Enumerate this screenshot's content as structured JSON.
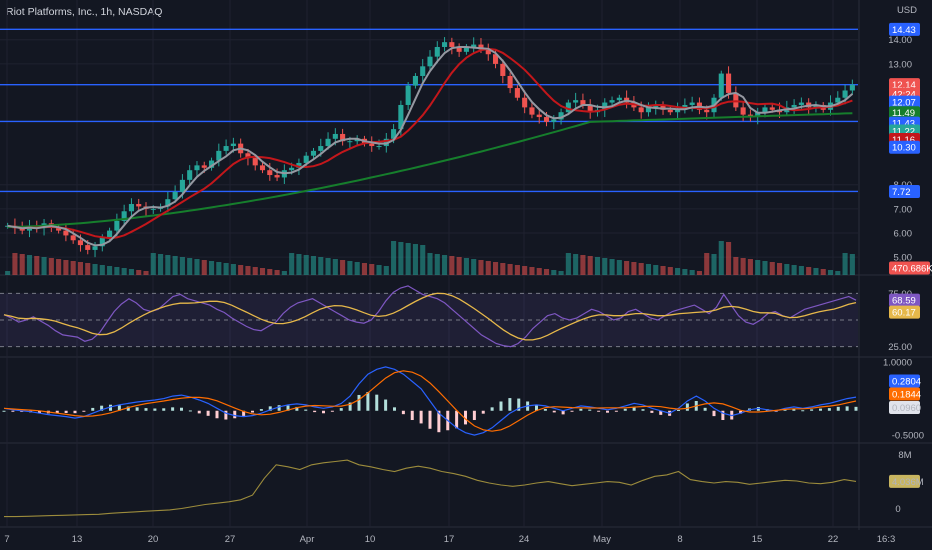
{
  "header": {
    "title": "Riot Platforms, Inc., 1h, NASDAQ",
    "currency": "USD"
  },
  "colors": {
    "background": "#131722",
    "grid": "#1f2230",
    "level_line": "#2962ff",
    "candle_up": "#26a69a",
    "candle_down": "#ef5350",
    "ma_fast": "#9598a1",
    "ma_mid": "#c3171b",
    "ma_slow": "#167e2c",
    "rsi": "#7e57c2",
    "rsi_ma": "#e6b84a",
    "macd": "#2962ff",
    "macd_signal": "#ff6d00",
    "obv": "#9c8c3c"
  },
  "chart_data": {
    "type": "candlestick",
    "symbol": "Riot Platforms, Inc., 1h, NASDAQ",
    "x_ticks": [
      "7",
      "13",
      "20",
      "27",
      "Apr",
      "10",
      "17",
      "24",
      "May",
      "8",
      "15",
      "22",
      "16:3"
    ],
    "price_axis": {
      "ticks": [
        "14.00",
        "13.00",
        "8.00",
        "7.00",
        "6.00",
        "5.00"
      ],
      "range": [
        4.8,
        14.9
      ]
    },
    "price_tags": [
      {
        "label": "14.43",
        "value": 14.43,
        "color": "#2962ff"
      },
      {
        "label": "12.14",
        "value": 12.14,
        "color": "#ef5350"
      },
      {
        "label": "42:24",
        "value": 11.75,
        "color": "#ef5350"
      },
      {
        "label": "12.07",
        "value": 11.42,
        "color": "#2962ff"
      },
      {
        "label": "11.49",
        "value": 10.98,
        "color": "#167e2c"
      },
      {
        "label": "11.43",
        "value": 10.55,
        "color": "#2962ff"
      },
      {
        "label": "11.22",
        "value": 10.22,
        "color": "#26a69a"
      },
      {
        "label": "11.16",
        "value": 9.87,
        "color": "#c3171b"
      },
      {
        "label": "10.30",
        "value": 9.55,
        "color": "#2962ff"
      },
      {
        "label": "7.72",
        "value": 7.72,
        "color": "#2962ff"
      },
      {
        "label": "470.686K",
        "value": 4.95,
        "color": "#ef5350"
      }
    ],
    "horizontal_levels": [
      14.43,
      12.14,
      10.62,
      7.72
    ],
    "close_series": [
      6.3,
      6.2,
      6.1,
      6.3,
      6.2,
      6.4,
      6.25,
      6.1,
      5.9,
      5.7,
      5.5,
      5.3,
      5.45,
      5.8,
      6.1,
      6.5,
      6.9,
      7.2,
      7.1,
      7.0,
      7.0,
      7.1,
      7.4,
      7.7,
      8.2,
      8.6,
      8.8,
      8.7,
      9.0,
      9.4,
      9.6,
      9.7,
      9.3,
      9.1,
      8.8,
      8.6,
      8.4,
      8.3,
      8.6,
      8.7,
      8.9,
      9.2,
      9.4,
      9.6,
      9.9,
      10.1,
      9.8,
      9.8,
      9.9,
      9.7,
      9.6,
      9.6,
      9.9,
      10.3,
      11.3,
      12.1,
      12.5,
      12.9,
      13.3,
      13.7,
      13.9,
      13.7,
      13.5,
      13.7,
      13.8,
      13.6,
      13.4,
      13.0,
      12.5,
      12.0,
      11.6,
      11.2,
      10.9,
      10.8,
      10.6,
      10.7,
      11.0,
      11.4,
      11.5,
      11.3,
      11.0,
      11.1,
      11.4,
      11.5,
      11.6,
      11.4,
      11.2,
      11.0,
      11.2,
      11.3,
      11.1,
      11.0,
      11.1,
      11.3,
      11.4,
      11.1,
      11.0,
      11.6,
      12.6,
      11.8,
      11.2,
      10.9,
      10.8,
      11.0,
      11.2,
      11.1,
      11.0,
      11.2,
      11.3,
      11.4,
      11.2,
      11.3,
      11.1,
      11.4,
      11.6,
      11.9,
      12.14
    ],
    "series": [
      {
        "name": "",
        "type": "sma_fast",
        "color": "#9598a1"
      },
      {
        "name": "",
        "type": "sma_mid",
        "color": "#c3171b"
      },
      {
        "name": "",
        "type": "sma_slow",
        "color": "#167e2c"
      }
    ],
    "volume_label": "470.686K",
    "rsi": {
      "ticks": [
        "75.00",
        "25.00"
      ],
      "tags": [
        {
          "label": "68.59",
          "color": "#7e57c2"
        },
        {
          "label": "60.17",
          "color": "#e6b84a"
        }
      ],
      "values": [
        55,
        52,
        48,
        50,
        53,
        49,
        45,
        40,
        36,
        35,
        34,
        30,
        32,
        38,
        48,
        58,
        65,
        70,
        66,
        60,
        58,
        60,
        66,
        72,
        74,
        70,
        68,
        66,
        64,
        60,
        57,
        52,
        48,
        44,
        41,
        40,
        44,
        48,
        56,
        62,
        66,
        68,
        70,
        66,
        62,
        58,
        54,
        50,
        48,
        47,
        50,
        58,
        68,
        76,
        80,
        82,
        78,
        74,
        72,
        70,
        66,
        60,
        54,
        48,
        42,
        36,
        32,
        28,
        26,
        25,
        28,
        34,
        42,
        48,
        54,
        56,
        52,
        50,
        52,
        56,
        60,
        58,
        54,
        50,
        52,
        58,
        60,
        56,
        52,
        50,
        54,
        58,
        60,
        62,
        64,
        60,
        56,
        62,
        74,
        64,
        54,
        48,
        46,
        50,
        56,
        58,
        54,
        52,
        56,
        60,
        62,
        64,
        66,
        68,
        70,
        72,
        68.59
      ]
    },
    "macd": {
      "ticks": [
        "1.0000",
        "-0.5000"
      ],
      "tags": [
        {
          "label": "0.2804",
          "color": "#2962ff"
        },
        {
          "label": "0.1844",
          "color": "#ff6d00"
        },
        {
          "label": "0.0960",
          "color": "#ffffff"
        }
      ],
      "values": [
        0.05,
        0.02,
        0.0,
        -0.02,
        -0.05,
        -0.08,
        -0.1,
        -0.12,
        -0.15,
        -0.12,
        -0.05,
        0.02,
        0.08,
        0.12,
        0.15,
        0.18,
        0.2,
        0.22,
        0.25,
        0.3,
        0.32,
        0.28,
        0.22,
        0.15,
        0.05,
        -0.05,
        -0.1,
        -0.12,
        -0.1,
        -0.05,
        0.02,
        0.08,
        0.12,
        0.14,
        0.12,
        0.08,
        0.05,
        0.08,
        0.15,
        0.3,
        0.55,
        0.75,
        0.85,
        0.9,
        0.85,
        0.75,
        0.6,
        0.45,
        0.2,
        -0.05,
        -0.2,
        -0.35,
        -0.45,
        -0.5,
        -0.45,
        -0.35,
        -0.2,
        -0.05,
        0.05,
        0.1,
        0.12,
        0.1,
        0.05,
        0.0,
        0.05,
        0.1,
        0.08,
        0.05,
        0.02,
        0.05,
        0.1,
        0.15,
        0.12,
        0.05,
        0.0,
        -0.05,
        0.05,
        0.2,
        0.3,
        0.2,
        0.05,
        -0.05,
        -0.1,
        -0.05,
        0.02,
        0.05,
        0.02,
        0.0,
        0.05,
        0.08,
        0.05,
        0.08,
        0.12,
        0.15,
        0.2,
        0.25,
        0.2804
      ]
    },
    "obv": {
      "ticks": [
        "8M",
        "0"
      ],
      "tag": {
        "label": "4.036M",
        "color": "#9c8c3c"
      },
      "values": [
        -1.2,
        -1.2,
        -1.15,
        -1.1,
        -1.05,
        -1.0,
        -0.95,
        -0.9,
        -0.85,
        -0.7,
        -0.6,
        -0.5,
        -0.4,
        -0.3,
        -0.2,
        0.0,
        0.3,
        0.6,
        0.8,
        1.0,
        1.3,
        2.0,
        4.5,
        6.5,
        6.2,
        5.8,
        6.5,
        6.8,
        7.0,
        7.2,
        6.5,
        6.2,
        5.8,
        5.5,
        6.0,
        6.3,
        6.0,
        5.5,
        5.2,
        4.8,
        4.2,
        3.8,
        3.5,
        3.3,
        3.5,
        3.8,
        4.0,
        3.7,
        3.4,
        3.6,
        3.8,
        4.0,
        3.9,
        3.5,
        4.2,
        4.8,
        5.0,
        5.5,
        4.3,
        4.0,
        3.8,
        4.0,
        3.9,
        3.6,
        3.8,
        4.0,
        4.2,
        4.1,
        3.8,
        3.7,
        3.9,
        4.3,
        4.036
      ]
    }
  }
}
